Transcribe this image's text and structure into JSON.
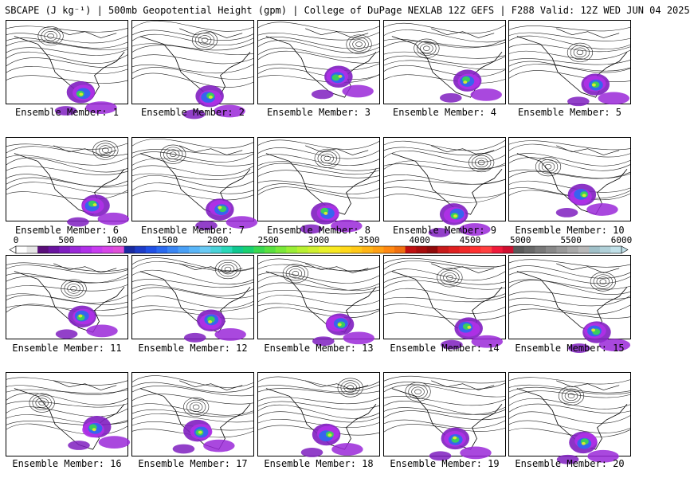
{
  "header": {
    "title": "SBCAPE (J kg⁻¹) | 500mb Geopotential Height (gpm) | College of DuPage NEXLAB 12Z GEFS | F288 Valid: 12Z WED JUN 04 2025"
  },
  "members": [
    {
      "label": "Ensemble Member: 1"
    },
    {
      "label": "Ensemble Member: 2"
    },
    {
      "label": "Ensemble Member: 3"
    },
    {
      "label": "Ensemble Member: 4"
    },
    {
      "label": "Ensemble Member: 5"
    },
    {
      "label": "Ensemble Member: 6"
    },
    {
      "label": "Ensemble Member: 7"
    },
    {
      "label": "Ensemble Member: 8"
    },
    {
      "label": "Ensemble Member: 9"
    },
    {
      "label": "Ensemble Member: 10"
    },
    {
      "label": "Ensemble Member: 11"
    },
    {
      "label": "Ensemble Member: 12"
    },
    {
      "label": "Ensemble Member: 13"
    },
    {
      "label": "Ensemble Member: 14"
    },
    {
      "label": "Ensemble Member: 15"
    },
    {
      "label": "Ensemble Member: 16"
    },
    {
      "label": "Ensemble Member: 17"
    },
    {
      "label": "Ensemble Member: 18"
    },
    {
      "label": "Ensemble Member: 19"
    },
    {
      "label": "Ensemble Member: 20"
    }
  ],
  "colorbar": {
    "ticks": [
      "0",
      "500",
      "1000",
      "1500",
      "2000",
      "2500",
      "3000",
      "3500",
      "4000",
      "4500",
      "5000",
      "5500",
      "6000"
    ],
    "min": 0,
    "max": 6000,
    "colors": [
      "#ffffff",
      "#e6e6e6",
      "#5a0f7a",
      "#6a14a0",
      "#7f1ec0",
      "#9a28d8",
      "#b030e8",
      "#c83cf0",
      "#d846e8",
      "#e050d8",
      "#1a2aa0",
      "#1e3cc8",
      "#2050e6",
      "#2a6af0",
      "#3a86f4",
      "#4aa0f6",
      "#5ab6f8",
      "#6acaf4",
      "#4ad2d8",
      "#2ad8b8",
      "#10c890",
      "#1ad070",
      "#3ad850",
      "#5ae040",
      "#7ae83a",
      "#9aee36",
      "#b8f032",
      "#d0f030",
      "#e8f02a",
      "#f8e820",
      "#ffd81a",
      "#ffc818",
      "#ffb416",
      "#ffa014",
      "#ff8812",
      "#f07010",
      "#c01010",
      "#a80c0c",
      "#900a0a",
      "#c81a1a",
      "#e02020",
      "#f02828",
      "#ff3030",
      "#ff4040",
      "#f01a3a",
      "#d01030",
      "#5a5a5a",
      "#686868",
      "#787878",
      "#888888",
      "#989898",
      "#a8a8a8",
      "#b8b8b8",
      "#a0c0c8",
      "#b0d0d8",
      "#c0e0e8"
    ]
  }
}
